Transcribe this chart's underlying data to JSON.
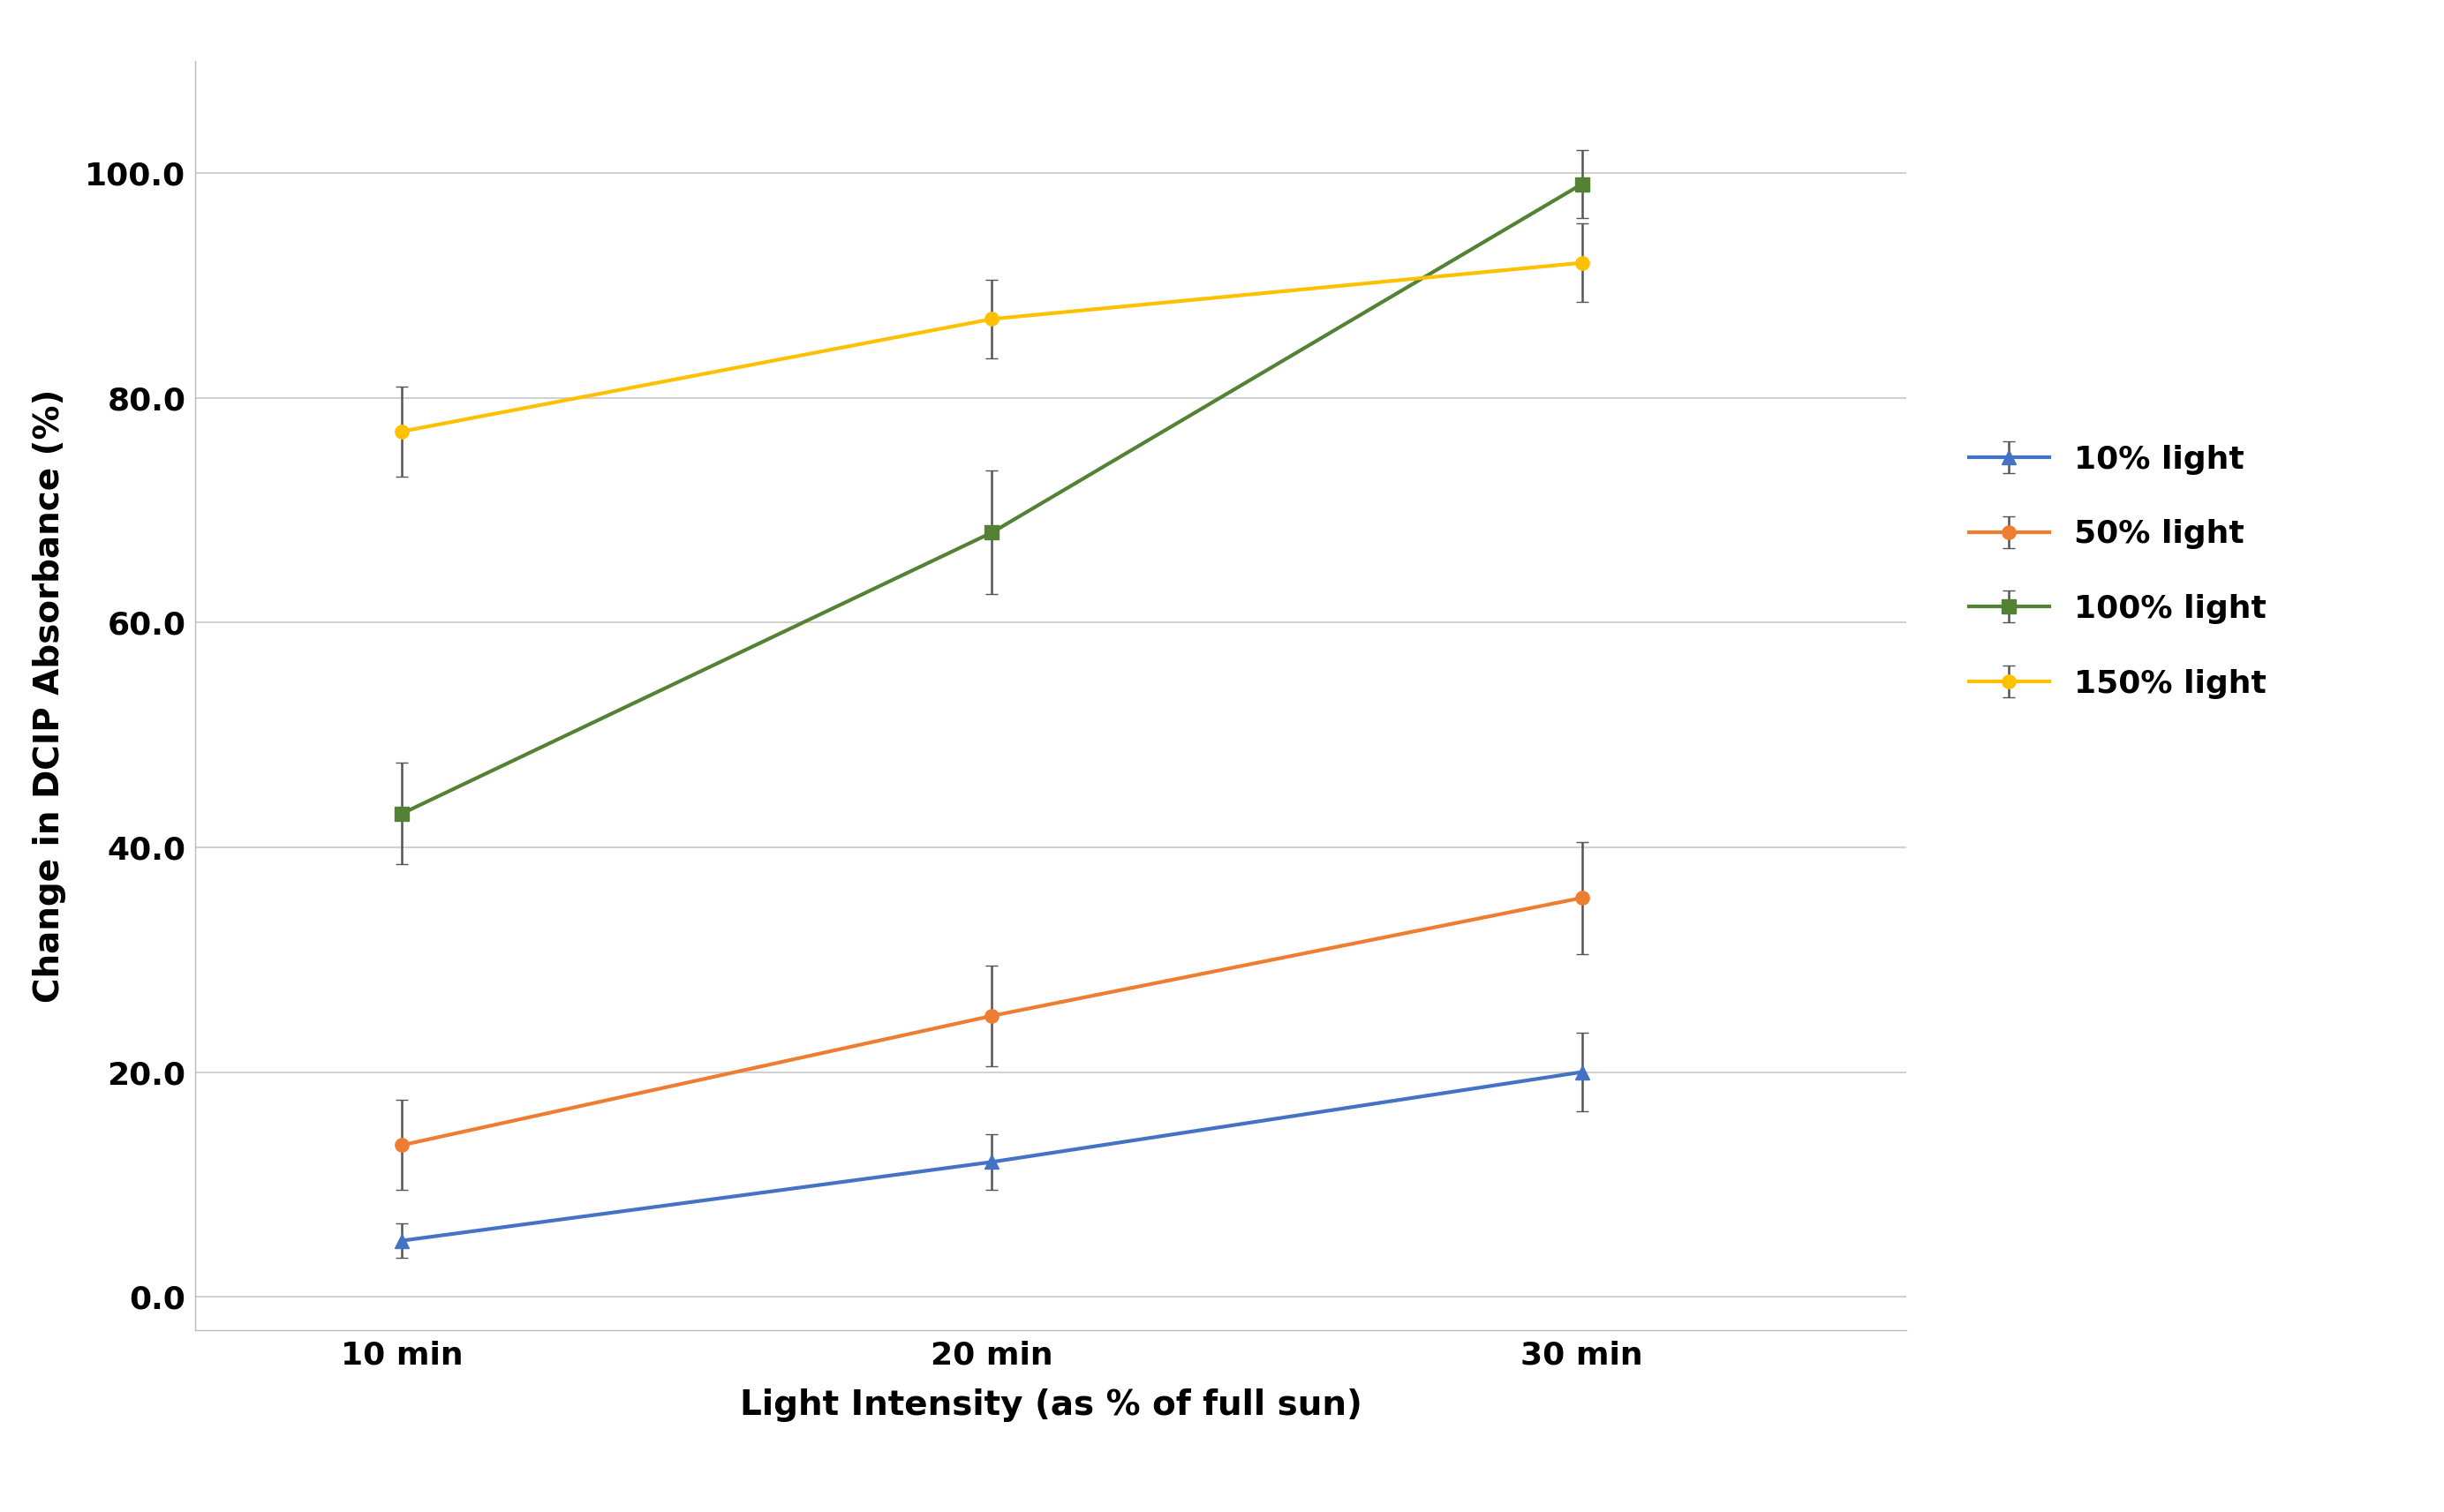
{
  "x_positions": [
    0,
    1,
    2
  ],
  "x_labels": [
    "10 min",
    "20 min",
    "30 min"
  ],
  "series": [
    {
      "label": "10% light",
      "color": "#4472C4",
      "marker": "^",
      "marker_size": 11,
      "values": [
        5.0,
        12.0,
        20.0
      ],
      "errors": [
        1.5,
        2.5,
        3.5
      ]
    },
    {
      "label": "50% light",
      "color": "#ED7D31",
      "marker": "o",
      "marker_size": 11,
      "values": [
        13.5,
        25.0,
        35.5
      ],
      "errors": [
        4.0,
        4.5,
        5.0
      ]
    },
    {
      "label": "100% light",
      "color": "#548235",
      "marker": "s",
      "marker_size": 11,
      "values": [
        43.0,
        68.0,
        99.0
      ],
      "errors": [
        4.5,
        5.5,
        3.0
      ]
    },
    {
      "label": "150% light",
      "color": "#FFC000",
      "marker": "o",
      "marker_size": 11,
      "values": [
        77.0,
        87.0,
        92.0
      ],
      "errors": [
        4.0,
        3.5,
        3.5
      ]
    }
  ],
  "xlabel": "Light Intensity (as % of full sun)",
  "ylabel": "Change in DCIP Absorbance (%)",
  "ylim": [
    -3,
    110
  ],
  "yticks": [
    0.0,
    20.0,
    40.0,
    60.0,
    80.0,
    100.0
  ],
  "xlim": [
    -0.35,
    2.55
  ],
  "background_color": "#FFFFFF",
  "grid_color": "#C8C8C8",
  "xlabel_fontsize": 28,
  "ylabel_fontsize": 28,
  "tick_fontsize": 26,
  "legend_fontsize": 26,
  "line_width": 3.0,
  "capsize": 5,
  "elinewidth": 1.8
}
